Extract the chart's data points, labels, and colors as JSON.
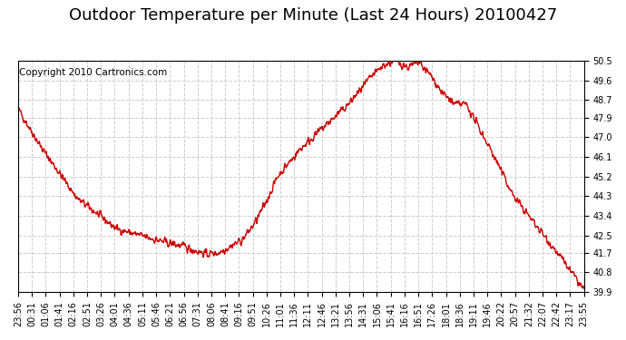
{
  "title": "Outdoor Temperature per Minute (Last 24 Hours) 20100427",
  "copyright_text": "Copyright 2010 Cartronics.com",
  "line_color": "#cc0000",
  "bg_color": "#ffffff",
  "plot_bg_color": "#ffffff",
  "grid_color": "#cccccc",
  "grid_style": "--",
  "ylim": [
    39.9,
    50.5
  ],
  "yticks": [
    39.9,
    40.8,
    41.7,
    42.5,
    43.4,
    44.3,
    45.2,
    46.1,
    47.0,
    47.9,
    48.7,
    49.6,
    50.5
  ],
  "xtick_labels": [
    "23:56",
    "00:31",
    "01:06",
    "01:41",
    "02:16",
    "02:51",
    "03:26",
    "04:01",
    "04:36",
    "05:11",
    "05:46",
    "06:21",
    "06:56",
    "07:31",
    "08:06",
    "08:41",
    "09:16",
    "09:51",
    "10:26",
    "11:01",
    "11:36",
    "12:11",
    "12:46",
    "13:21",
    "13:56",
    "14:31",
    "15:06",
    "15:41",
    "16:16",
    "16:51",
    "17:26",
    "18:01",
    "18:36",
    "19:11",
    "19:46",
    "20:22",
    "20:57",
    "21:32",
    "22:07",
    "22:42",
    "23:17",
    "23:55"
  ],
  "title_fontsize": 13,
  "copyright_fontsize": 7.5,
  "tick_fontsize": 7,
  "line_width": 1.0
}
